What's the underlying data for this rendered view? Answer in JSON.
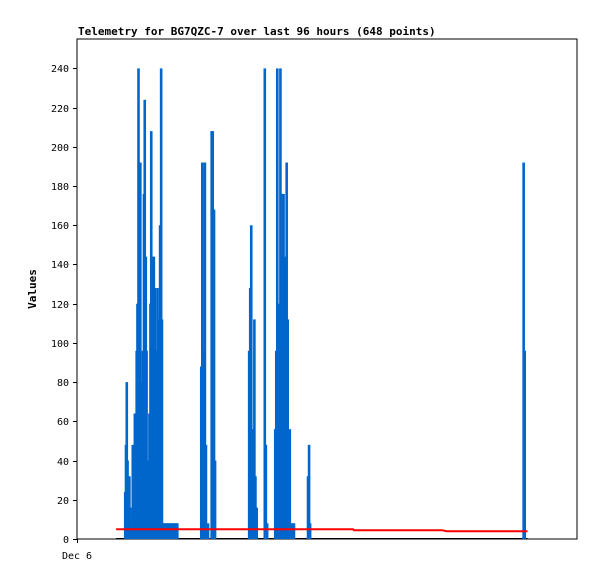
{
  "chart_data": {
    "type": "bar",
    "title": "Telemetry for BG7QZC-7 over last 96 hours (648 points)",
    "xlabel": "",
    "ylabel": "Values",
    "x_tick_labels": [
      "Dec 6"
    ],
    "ylim": [
      0,
      255
    ],
    "y_ticks": [
      0,
      20,
      40,
      60,
      80,
      100,
      120,
      140,
      160,
      180,
      200,
      220,
      240
    ],
    "xlim": [
      0,
      96
    ],
    "grid": false,
    "legend": "none",
    "colors": {
      "bars": "#0066cc",
      "line": "#ff0000",
      "frame": "#000000"
    },
    "series": [
      {
        "type": "bar",
        "x": [
          9.2,
          9.35,
          9.5,
          9.65,
          9.8,
          10.0,
          10.15,
          10.45,
          10.65,
          10.85,
          11.05,
          11.25,
          11.4,
          11.55,
          11.75,
          11.95,
          12.1,
          12.25,
          12.45,
          12.6,
          12.8,
          12.95,
          13.15,
          13.3,
          13.5,
          13.65,
          13.85,
          14.05,
          14.2,
          14.35,
          14.55,
          14.7,
          14.9,
          15.05,
          15.2,
          15.4,
          15.55,
          15.75,
          15.9,
          16.1,
          16.25,
          16.45,
          16.6,
          16.75,
          16.95,
          17.1,
          17.3,
          17.45,
          17.6,
          17.8,
          17.95,
          18.15,
          18.3,
          18.45,
          18.65,
          18.85,
          19.05,
          19.2,
          23.8,
          24.0,
          24.3,
          24.5,
          24.7,
          25.1,
          25.8,
          26.0,
          26.25,
          26.45,
          33.0,
          33.2,
          33.4,
          33.6,
          33.8,
          34.0,
          34.2,
          34.45,
          36.0,
          36.2,
          36.45,
          38.0,
          38.2,
          38.4,
          38.6,
          38.8,
          39.0,
          39.2,
          39.4,
          39.6,
          39.8,
          40.0,
          40.2,
          40.4,
          40.6,
          40.8,
          41.0,
          41.2,
          41.4,
          41.6,
          44.3,
          44.5,
          44.7,
          85.7,
          85.9
        ],
        "values": [
          24,
          48,
          80,
          40,
          16,
          32,
          16,
          8,
          48,
          24,
          64,
          56,
          96,
          120,
          240,
          144,
          192,
          80,
          40,
          96,
          176,
          224,
          144,
          96,
          40,
          16,
          64,
          120,
          208,
          144,
          112,
          144,
          128,
          96,
          80,
          128,
          112,
          96,
          160,
          240,
          112,
          8,
          8,
          8,
          8,
          8,
          8,
          8,
          8,
          8,
          8,
          8,
          8,
          8,
          8,
          8,
          8,
          8,
          88,
          192,
          96,
          192,
          48,
          8,
          208,
          208,
          168,
          40,
          96,
          128,
          160,
          48,
          56,
          112,
          32,
          16,
          240,
          48,
          8,
          56,
          96,
          240,
          120,
          96,
          240,
          176,
          40,
          176,
          144,
          88,
          192,
          112,
          48,
          56,
          8,
          8,
          8,
          8,
          32,
          48,
          8,
          192,
          96
        ]
      },
      {
        "type": "line",
        "x": [
          7.5,
          20,
          35,
          45,
          53,
          53.2,
          70,
          71,
          80,
          86.5
        ],
        "values": [
          5,
          5,
          5,
          5,
          5,
          4.5,
          4.5,
          4,
          4,
          4
        ]
      }
    ]
  }
}
